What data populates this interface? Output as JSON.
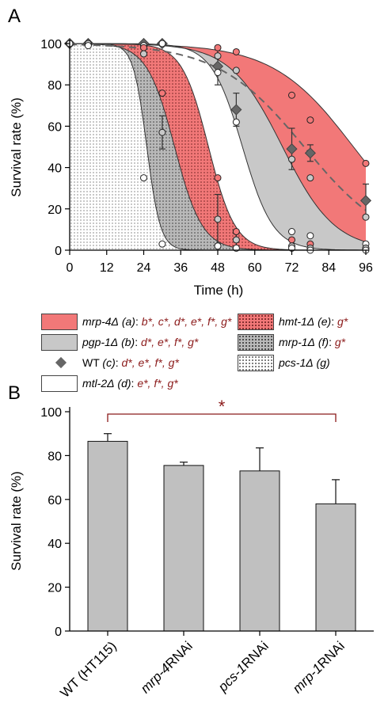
{
  "panel_a_label": "A",
  "panel_b_label": "B",
  "legend": [
    {
      "name": "mrp-4Δ",
      "tag": "(a)",
      "sig": "b*, c*, d*, e*, f*, g*",
      "swatch": "red"
    },
    {
      "name": "pgp-1Δ",
      "tag": "(b)",
      "sig": "d*, e*, f*, g*",
      "swatch": "gray"
    },
    {
      "name": "WT",
      "tag": "(c)",
      "sig": "d*, e*, f*, g*",
      "swatch": "diamond"
    },
    {
      "name": "mtl-2Δ",
      "tag": "(d)",
      "sig": "e*, f*, g*",
      "swatch": "white"
    },
    {
      "name": "hmt-1Δ",
      "tag": "(e)",
      "sig": "g*",
      "swatch": "reddot"
    },
    {
      "name": "mrp-1Δ",
      "tag": "(f)",
      "sig": "g*",
      "swatch": "graydot"
    },
    {
      "name": "pcs-1Δ",
      "tag": "(g)",
      "sig": "",
      "swatch": "whitedot"
    }
  ],
  "chart_data": [
    {
      "type": "area",
      "xlabel": "Time (h)",
      "ylabel": "Survival rate (%)",
      "xlim": [
        0,
        96
      ],
      "ylim": [
        0,
        100
      ],
      "xticks": [
        0,
        12,
        24,
        36,
        48,
        60,
        72,
        84,
        96
      ],
      "yticks": [
        0,
        20,
        40,
        60,
        80,
        100
      ],
      "grid": false,
      "series": [
        {
          "name": "mrp-4Δ",
          "color": "#f27878",
          "x": [
            0,
            6,
            24,
            30,
            48,
            54,
            72,
            78,
            96
          ],
          "y": [
            100,
            100,
            100,
            100,
            98,
            96,
            75,
            63,
            42
          ],
          "fit": {
            "x50": 92,
            "slope": 13
          }
        },
        {
          "name": "pgp-1Δ",
          "color": "#c8c8c8",
          "x": [
            0,
            6,
            24,
            30,
            48,
            54,
            72,
            78,
            96
          ],
          "y": [
            100,
            100,
            100,
            100,
            94,
            87,
            44,
            35,
            16
          ],
          "fit": {
            "x50": 69,
            "slope": 8.5
          }
        },
        {
          "name": "WT",
          "color": "#666666",
          "x": [
            0,
            6,
            24,
            30,
            48,
            54,
            72,
            78,
            96
          ],
          "y": [
            100,
            100,
            100,
            100,
            89,
            68,
            49,
            47,
            24
          ],
          "err": [
            0,
            0,
            0,
            0,
            9,
            8,
            10,
            4,
            8
          ],
          "fit": {
            "x50": 76,
            "slope": 14
          }
        },
        {
          "name": "mtl-2Δ",
          "color": "#ffffff",
          "x": [
            0,
            6,
            24,
            30,
            48,
            54,
            72,
            78,
            96
          ],
          "y": [
            100,
            100,
            99,
            100,
            86,
            62,
            9,
            7,
            3
          ],
          "fit": {
            "x50": 56,
            "slope": 5
          }
        },
        {
          "name": "hmt-1Δ",
          "color": "#f27878",
          "x": [
            0,
            6,
            24,
            30,
            48,
            54,
            72,
            78,
            96
          ],
          "y": [
            100,
            100,
            98,
            76,
            35,
            9,
            5,
            3,
            1
          ],
          "fit": {
            "x50": 45,
            "slope": 4.3
          }
        },
        {
          "name": "mrp-1Δ",
          "color": "#c8c8c8",
          "x": [
            0,
            6,
            24,
            30,
            48,
            54,
            72,
            78,
            96
          ],
          "y": [
            100,
            100,
            95,
            57,
            15,
            5,
            2,
            1,
            1
          ],
          "err": [
            0,
            0,
            0,
            8,
            12,
            3,
            0,
            0,
            0
          ],
          "fit": {
            "x50": 34,
            "slope": 4.5
          }
        },
        {
          "name": "pcs-1Δ",
          "color": "#ffffff",
          "x": [
            0,
            6,
            24,
            30,
            48,
            54,
            72,
            78,
            96
          ],
          "y": [
            100,
            99,
            35,
            3,
            2,
            1,
            1,
            0,
            0
          ],
          "fit": {
            "x50": 25,
            "slope": 2.2
          }
        }
      ]
    },
    {
      "type": "bar",
      "categories": [
        "WT (HT115)",
        "mrp-4RNAi",
        "pcs-1RNAi",
        "mrp-1RNAi"
      ],
      "values": [
        86.5,
        75.5,
        73,
        58
      ],
      "errors": [
        3.5,
        1.5,
        10.5,
        11
      ],
      "ylabel": "Survival rate (%)",
      "ylim": [
        0,
        100
      ],
      "yticks": [
        0,
        20,
        40,
        60,
        80,
        100
      ],
      "bar_color": "#c0c0c0",
      "annotation": "*",
      "annotation_color": "#8b1a1a"
    }
  ]
}
